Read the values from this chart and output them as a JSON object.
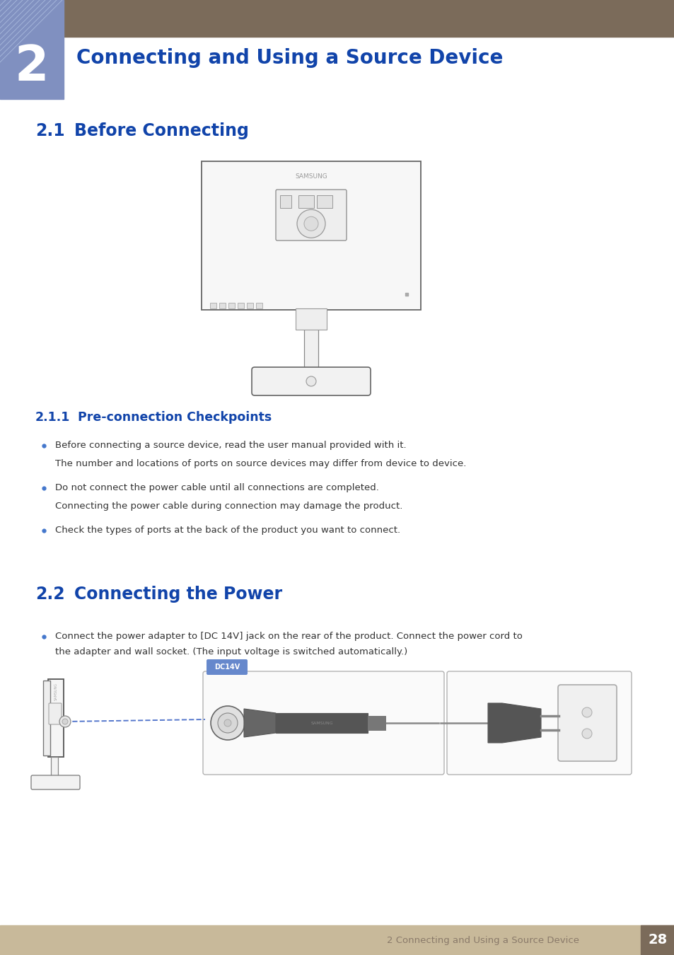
{
  "page_bg": "#ffffff",
  "footer_bg": "#c8b99a",
  "header_bar_bg": "#7b6b5a",
  "chapter_box_bg": "#8090c0",
  "chapter_num": "2",
  "chapter_title": "Connecting and Using a Source Device",
  "chapter_title_color": "#1144aa",
  "section_21_label": "2.1",
  "section_21_title": "Before Connecting",
  "section_21_color": "#1144aa",
  "subsection_211_label": "2.1.1",
  "subsection_211_title": "Pre-connection Checkpoints",
  "subsection_211_color": "#1144aa",
  "bullet_color": "#4477cc",
  "section_22_label": "2.2",
  "section_22_title": "Connecting the Power",
  "section_22_color": "#1144aa",
  "footer_text": "2 Connecting and Using a Source Device",
  "footer_page": "28",
  "footer_page_bg": "#7b6b5a",
  "footer_text_color": "#8a7a6a",
  "footer_page_color": "#ffffff",
  "diag_label_color": "#5577cc",
  "dc14v_bg": "#6688cc",
  "dc14v_text": "#ffffff"
}
